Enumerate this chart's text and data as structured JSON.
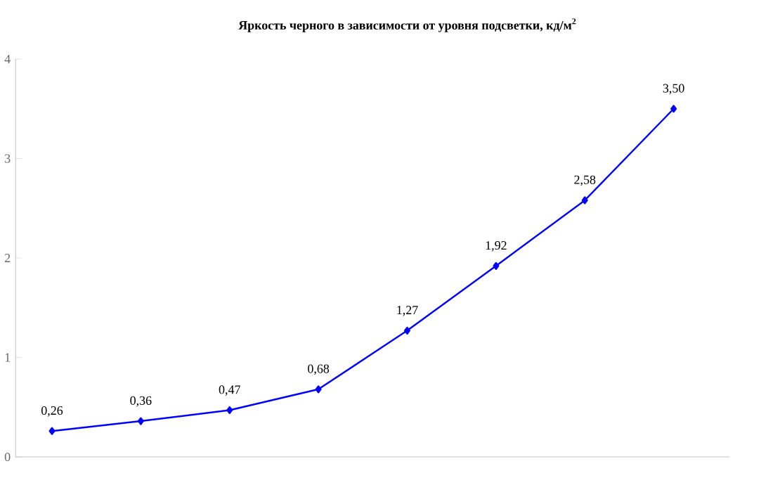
{
  "chart_data": {
    "type": "line",
    "title": "Яркость черного в зависимости от уровня подсветки, кд/м$^{2}$",
    "categories": [
      null,
      null,
      null,
      null,
      null,
      null,
      null,
      null
    ],
    "series": [
      {
        "color": "#0000ff",
        "values": [
          0.26,
          0.36,
          0.47,
          0.68,
          1.27,
          1.92,
          2.58,
          3.5
        ],
        "value_labels": [
          "0,26",
          "0,36",
          "0,47",
          "0,68",
          "1,27",
          "1,92",
          "2,58",
          "3,50"
        ]
      }
    ],
    "ylim": [
      0,
      4
    ],
    "yticks": [
      0,
      1,
      2,
      3,
      4
    ],
    "grid": false,
    "marker": "diamond",
    "line_style": "solid"
  }
}
